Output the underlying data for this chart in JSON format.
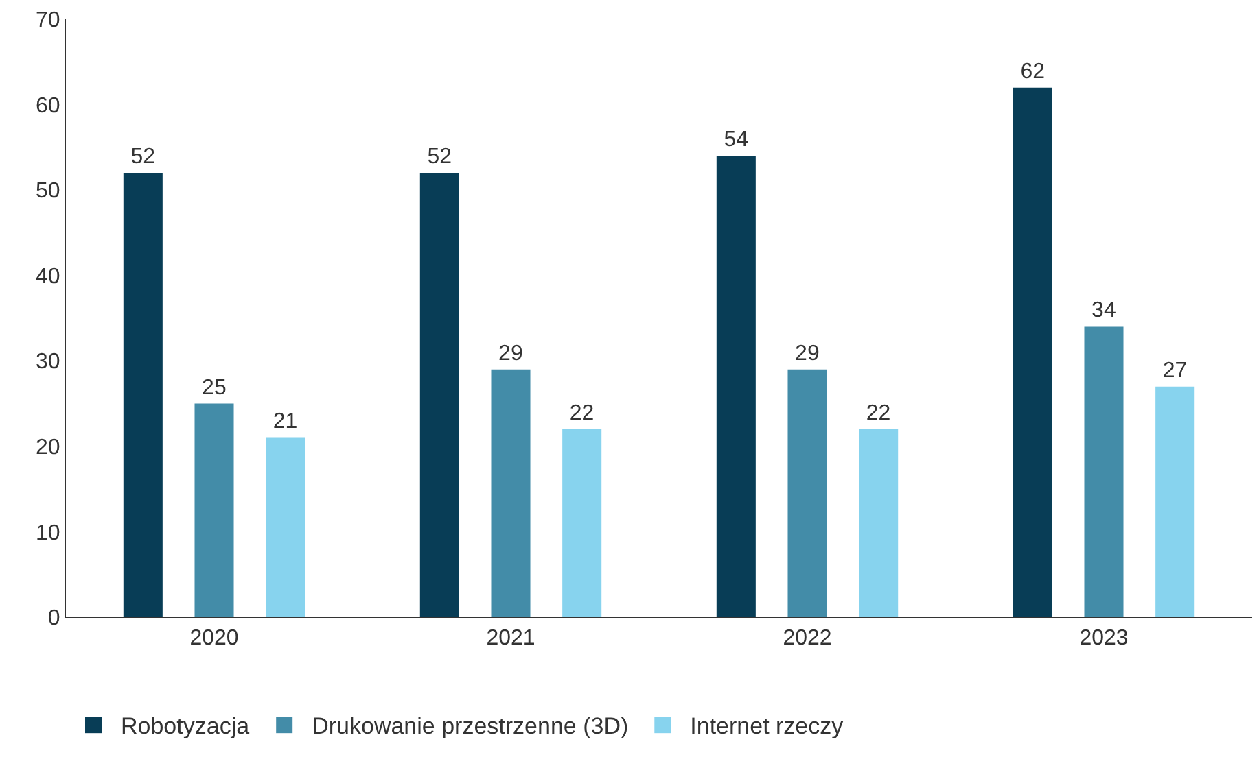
{
  "chart_data": {
    "type": "bar",
    "categories": [
      "2020",
      "2021",
      "2022",
      "2023"
    ],
    "series": [
      {
        "name": "Robotyzacja",
        "color": "#083d56",
        "values": [
          52,
          52,
          54,
          62
        ]
      },
      {
        "name": "Drukowanie przestrzenne (3D)",
        "color": "#438ca8",
        "values": [
          25,
          29,
          29,
          34
        ]
      },
      {
        "name": "Internet rzeczy",
        "color": "#87d3ee",
        "values": [
          21,
          22,
          22,
          27
        ]
      }
    ],
    "ylim": [
      0,
      70
    ],
    "yticks": [
      0,
      10,
      20,
      30,
      40,
      50,
      60,
      70
    ],
    "legend": "bottom left",
    "data_labels": true
  }
}
